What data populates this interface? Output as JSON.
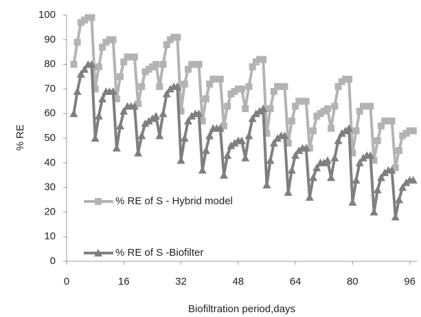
{
  "chart_data": {
    "type": "line",
    "xlabel": "Biofiltration period,days",
    "ylabel": "% RE",
    "x": [
      2,
      3,
      4,
      5,
      6,
      7,
      8,
      9,
      10,
      11,
      12,
      13,
      14,
      15,
      16,
      17,
      18,
      19,
      20,
      21,
      22,
      23,
      24,
      25,
      26,
      27,
      28,
      29,
      30,
      31,
      32,
      33,
      34,
      35,
      36,
      37,
      38,
      39,
      40,
      41,
      42,
      43,
      44,
      45,
      46,
      47,
      48,
      49,
      50,
      51,
      52,
      53,
      54,
      55,
      56,
      57,
      58,
      59,
      60,
      61,
      62,
      63,
      64,
      65,
      66,
      67,
      68,
      69,
      70,
      71,
      72,
      73,
      74,
      75,
      76,
      77,
      78,
      79,
      80,
      81,
      82,
      83,
      84,
      85,
      86,
      87,
      88,
      89,
      90,
      91,
      92,
      93,
      94,
      95,
      96,
      97
    ],
    "series": [
      {
        "name": "% RE of S - Hybrid model",
        "color": "#b3b3b3",
        "marker": "square",
        "values": [
          80,
          89,
          97,
          98,
          99,
          99,
          70,
          79,
          87,
          89,
          90,
          90,
          66,
          75,
          81,
          83,
          83,
          83,
          64,
          71,
          77,
          78,
          79,
          80,
          71,
          80,
          88,
          90,
          91,
          91,
          61,
          72,
          78,
          80,
          80,
          80,
          57,
          66,
          72,
          74,
          74,
          74,
          55,
          63,
          68,
          69,
          70,
          70,
          62,
          71,
          79,
          81,
          82,
          82,
          52,
          62,
          69,
          71,
          71,
          71,
          48,
          57,
          63,
          65,
          65,
          65,
          46,
          53,
          59,
          60,
          61,
          62,
          54,
          63,
          71,
          73,
          74,
          74,
          44,
          53,
          61,
          63,
          63,
          63,
          41,
          49,
          55,
          57,
          57,
          57,
          38,
          45,
          51,
          52,
          53,
          53
        ]
      },
      {
        "name": "% RE of S -Biofilter",
        "color": "#7f7f7f",
        "marker": "triangle",
        "values": [
          60,
          69,
          76,
          78,
          80,
          80,
          50,
          59,
          66,
          69,
          69,
          69,
          46,
          55,
          61,
          63,
          63,
          63,
          44,
          51,
          56,
          57,
          58,
          59,
          51,
          60,
          68,
          70,
          71,
          71,
          41,
          50,
          57,
          59,
          60,
          60,
          37,
          45,
          51,
          54,
          54,
          54,
          35,
          43,
          47,
          48,
          49,
          49,
          42,
          51,
          58,
          60,
          61,
          62,
          31,
          41,
          48,
          50,
          51,
          51,
          28,
          37,
          43,
          45,
          46,
          46,
          26,
          34,
          38,
          40,
          40,
          41,
          34,
          42,
          49,
          52,
          53,
          54,
          24,
          33,
          40,
          42,
          43,
          43,
          20,
          29,
          34,
          36,
          37,
          37,
          18,
          25,
          30,
          32,
          33,
          33
        ]
      }
    ],
    "xlim": [
      0,
      98
    ],
    "xticks": [
      0,
      16,
      32,
      48,
      64,
      80,
      96
    ],
    "ylim": [
      0,
      100
    ],
    "yticks": [
      0,
      10,
      20,
      30,
      40,
      50,
      60,
      70,
      80,
      90,
      100
    ],
    "grid": false,
    "legend": "lower left"
  }
}
